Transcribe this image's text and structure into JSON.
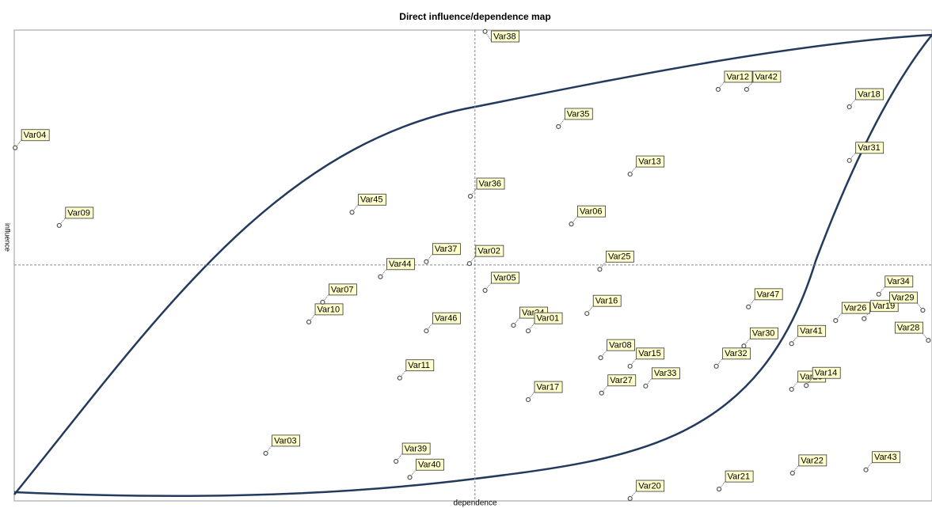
{
  "chart_data": {
    "type": "scatter",
    "title": "Direct influence/dependence map",
    "x_label": "dependence",
    "y_label": "influence",
    "xlim": [
      0,
      100
    ],
    "ylim": [
      0,
      100
    ],
    "reference_lines": {
      "x": 50.2,
      "y": 50.1
    },
    "color": "#555555",
    "label_fill": "#ffffcc",
    "labels": [
      "Var38",
      "Var04",
      "Var09",
      "Var45",
      "Var36",
      "Var35",
      "Var12",
      "Var42",
      "Var18",
      "Var31",
      "Var13",
      "Var06",
      "Var37",
      "Var02",
      "Var44",
      "Var25",
      "Var19",
      "Var05",
      "Var34",
      "Var29",
      "Var10",
      "Var07",
      "Var47",
      "Var16",
      "Var24",
      "Var01",
      "Var46",
      "Var26",
      "Var30",
      "Var41",
      "Var28",
      "Var08",
      "Var33",
      "Var15",
      "Var32",
      "Var11",
      "Var17",
      "Var27",
      "Var23",
      "Var14",
      "Var21",
      "Var03",
      "Var39",
      "Var40",
      "Var22",
      "Var43",
      "Var20"
    ],
    "x": [
      51.3,
      0.1,
      4.9,
      36.8,
      49.7,
      59.3,
      76.7,
      79.8,
      91.0,
      91.0,
      67.1,
      60.7,
      44.9,
      49.6,
      39.9,
      63.8,
      92.6,
      51.3,
      94.2,
      99.0,
      32.1,
      33.6,
      80.0,
      62.4,
      54.4,
      56.0,
      44.9,
      89.5,
      79.5,
      84.7,
      99.6,
      63.9,
      68.8,
      67.1,
      76.5,
      42.0,
      56.0,
      64.0,
      84.7,
      86.3,
      76.8,
      27.4,
      41.6,
      43.1,
      84.8,
      92.8,
      67.1
    ],
    "y": [
      99.7,
      75.0,
      58.5,
      61.3,
      64.7,
      79.5,
      87.4,
      87.4,
      83.7,
      72.3,
      69.4,
      58.8,
      50.8,
      50.4,
      47.6,
      49.2,
      38.7,
      44.7,
      43.9,
      40.5,
      38.0,
      42.2,
      41.2,
      39.8,
      37.3,
      36.1,
      36.1,
      38.3,
      32.9,
      33.4,
      34.1,
      30.4,
      24.4,
      28.6,
      28.6,
      26.1,
      21.5,
      22.9,
      23.7,
      24.5,
      2.5,
      10.1,
      8.4,
      5.0,
      5.9,
      6.6,
      0.5
    ]
  }
}
